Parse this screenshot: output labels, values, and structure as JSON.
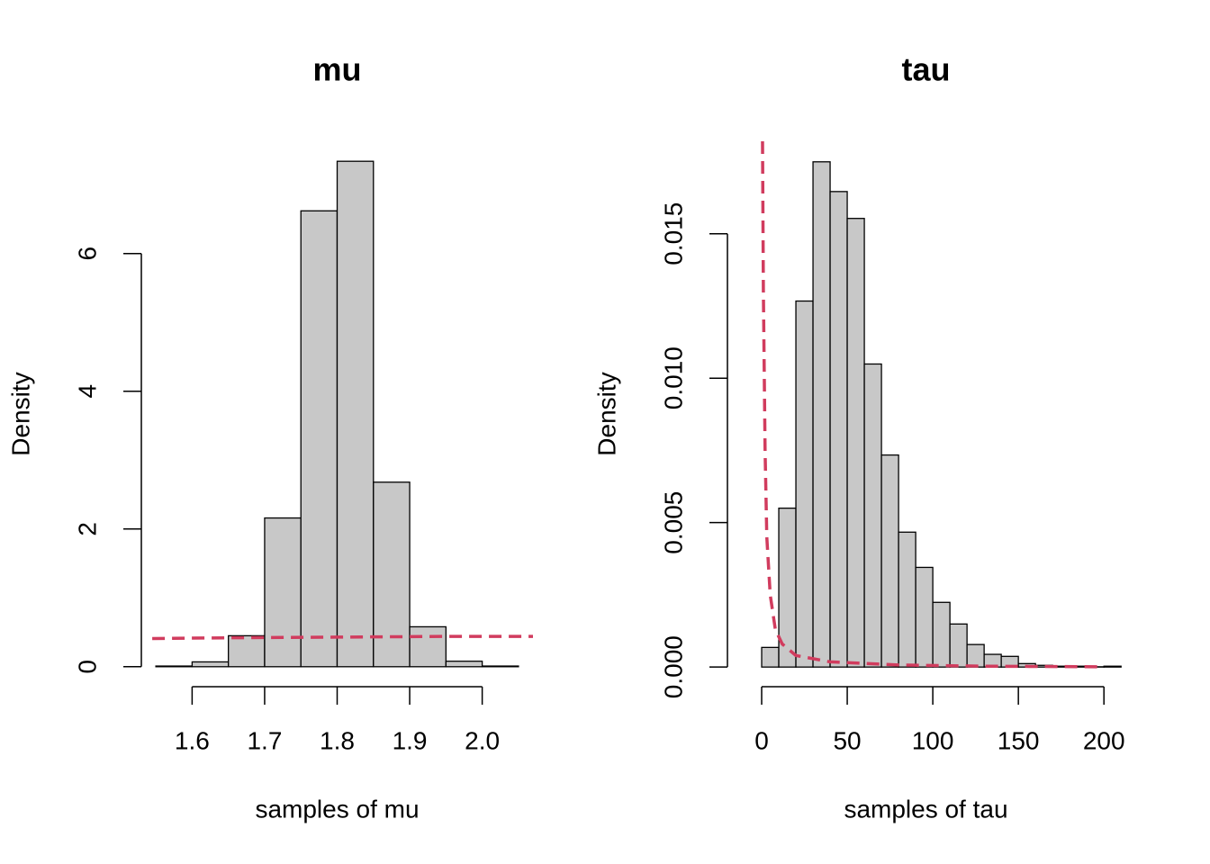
{
  "chart_data": [
    {
      "type": "histogram",
      "title": "mu",
      "x_label": "samples of mu",
      "y_label": "Density",
      "bins": [
        1.55,
        1.6,
        1.65,
        1.7,
        1.75,
        1.8,
        1.85,
        1.9,
        1.95,
        2.0,
        2.05
      ],
      "values": [
        0.01,
        0.07,
        0.45,
        2.16,
        6.62,
        7.34,
        2.68,
        0.58,
        0.08,
        0.01
      ],
      "color": "#c8c8c8",
      "density_curve": {
        "x": [
          1.545,
          1.65,
          1.8,
          1.95,
          2.07
        ],
        "y": [
          0.41,
          0.42,
          0.43,
          0.44,
          0.44
        ],
        "color": "#d13c5e"
      },
      "xlim": [
        1.53,
        2.07
      ],
      "ylim": [
        -0.29,
        7.63
      ],
      "xticks": [
        1.6,
        1.7,
        1.8,
        1.9,
        {
          "value": 2.0,
          "label": "2.0"
        }
      ],
      "yticks": [
        0,
        2,
        4,
        6
      ]
    },
    {
      "type": "histogram",
      "title": "tau",
      "x_label": "samples of tau",
      "y_label": "Density",
      "bins": [
        0,
        10,
        20,
        30,
        40,
        50,
        60,
        70,
        80,
        90,
        100,
        110,
        120,
        130,
        140,
        150,
        160,
        170,
        180,
        190,
        200,
        210
      ],
      "values": [
        0.00068,
        0.0055,
        0.01267,
        0.01749,
        0.01646,
        0.01553,
        0.01049,
        0.00734,
        0.00467,
        0.00345,
        0.00224,
        0.00149,
        0.00078,
        0.00044,
        0.00037,
        0.00012,
        6e-05,
        3e-05,
        3e-05,
        1e-05,
        3e-05
      ],
      "color": "#c8c8c8",
      "density_curve": {
        "x": [
          0.5,
          1,
          2,
          3,
          5,
          8,
          12,
          20,
          40,
          80,
          130,
          200
        ],
        "y": [
          0.0182,
          0.013,
          0.0075,
          0.0045,
          0.0025,
          0.0013,
          0.0008,
          0.0004,
          0.00018,
          7e-05,
          3e-05,
          1e-05
        ],
        "color": "#d13c5e"
      },
      "xlim": [
        -20,
        212
      ],
      "ylim": [
        -0.00068,
        0.0182
      ],
      "xticks": [
        0,
        50,
        100,
        150,
        200
      ],
      "yticks": [
        {
          "value": 0,
          "label": "0.000"
        },
        {
          "value": 0.005,
          "label": "0.005"
        },
        {
          "value": 0.01,
          "label": "0.010"
        },
        {
          "value": 0.015,
          "label": "0.015"
        }
      ]
    }
  ]
}
